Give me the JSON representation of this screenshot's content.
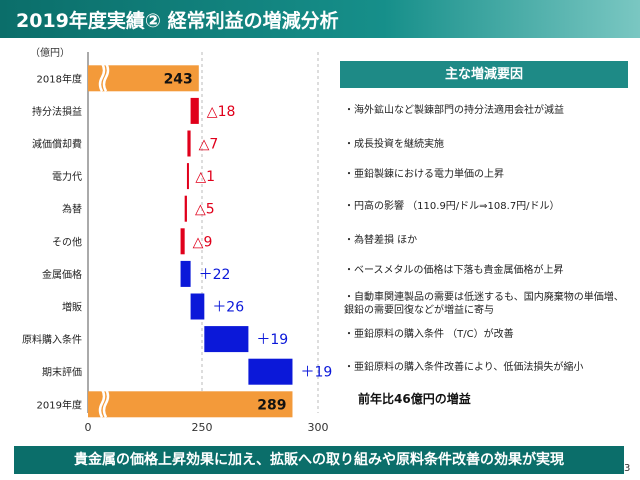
{
  "header": {
    "title": "2019年度実績② 経常利益の増減分析"
  },
  "chart_data": {
    "type": "waterfall",
    "unit_label": "（億円）",
    "x_ticks": [
      0,
      250,
      300
    ],
    "axis_break_note": "0〜250 は圧縮表示（波線区間）",
    "categories": [
      "2018年度",
      "持分法損益",
      "減価償却費",
      "電力代",
      "為替",
      "その他",
      "金属価格",
      "増販",
      "原料購入条件",
      "期末評価",
      "2019年度"
    ],
    "kinds": [
      "total",
      "decrease",
      "decrease",
      "decrease",
      "decrease",
      "decrease",
      "increase",
      "increase",
      "increase",
      "increase",
      "total"
    ],
    "values": [
      243,
      -18,
      -7,
      -1,
      -5,
      -9,
      22,
      26,
      19,
      19,
      289
    ],
    "value_labels": [
      "243",
      "△18",
      "△7",
      "△1",
      "△5",
      "△9",
      "＋22",
      "＋26",
      "＋19",
      "＋19",
      "289"
    ],
    "colors": {
      "total": "#f39a3a",
      "decrease": "#e0001b",
      "increase": "#0b18d9",
      "decrease_label": "#e0001b",
      "increase_label": "#0b18d9"
    }
  },
  "factors": {
    "heading": "主な増減要因",
    "items": [
      "・海外鉱山など製錬部門の持分法適用会社が減益",
      "・成長投資を継続実施",
      "・亜鉛製錬における電力単価の上昇",
      "・円高の影響 （110.9円/ドル⇒108.7円/ドル）",
      "・為替差損 ほか",
      "・ベースメタルの価格は下落も貴金属価格が上昇",
      "・自動車関連製品の需要は低迷するも、国内廃棄物の単価増、　銀鉛の需要回復などが増益に寄与",
      "・亜鉛原料の購入条件 （T/C）が改善",
      "・亜鉛原料の購入条件改善により、低価法損失が縮小"
    ],
    "summary": "前年比46億円の増益"
  },
  "footer": {
    "message": "貴金属の価格上昇効果に加え、拡販への取り組みや原料条件改善の効果が実現"
  },
  "page_number": "3"
}
